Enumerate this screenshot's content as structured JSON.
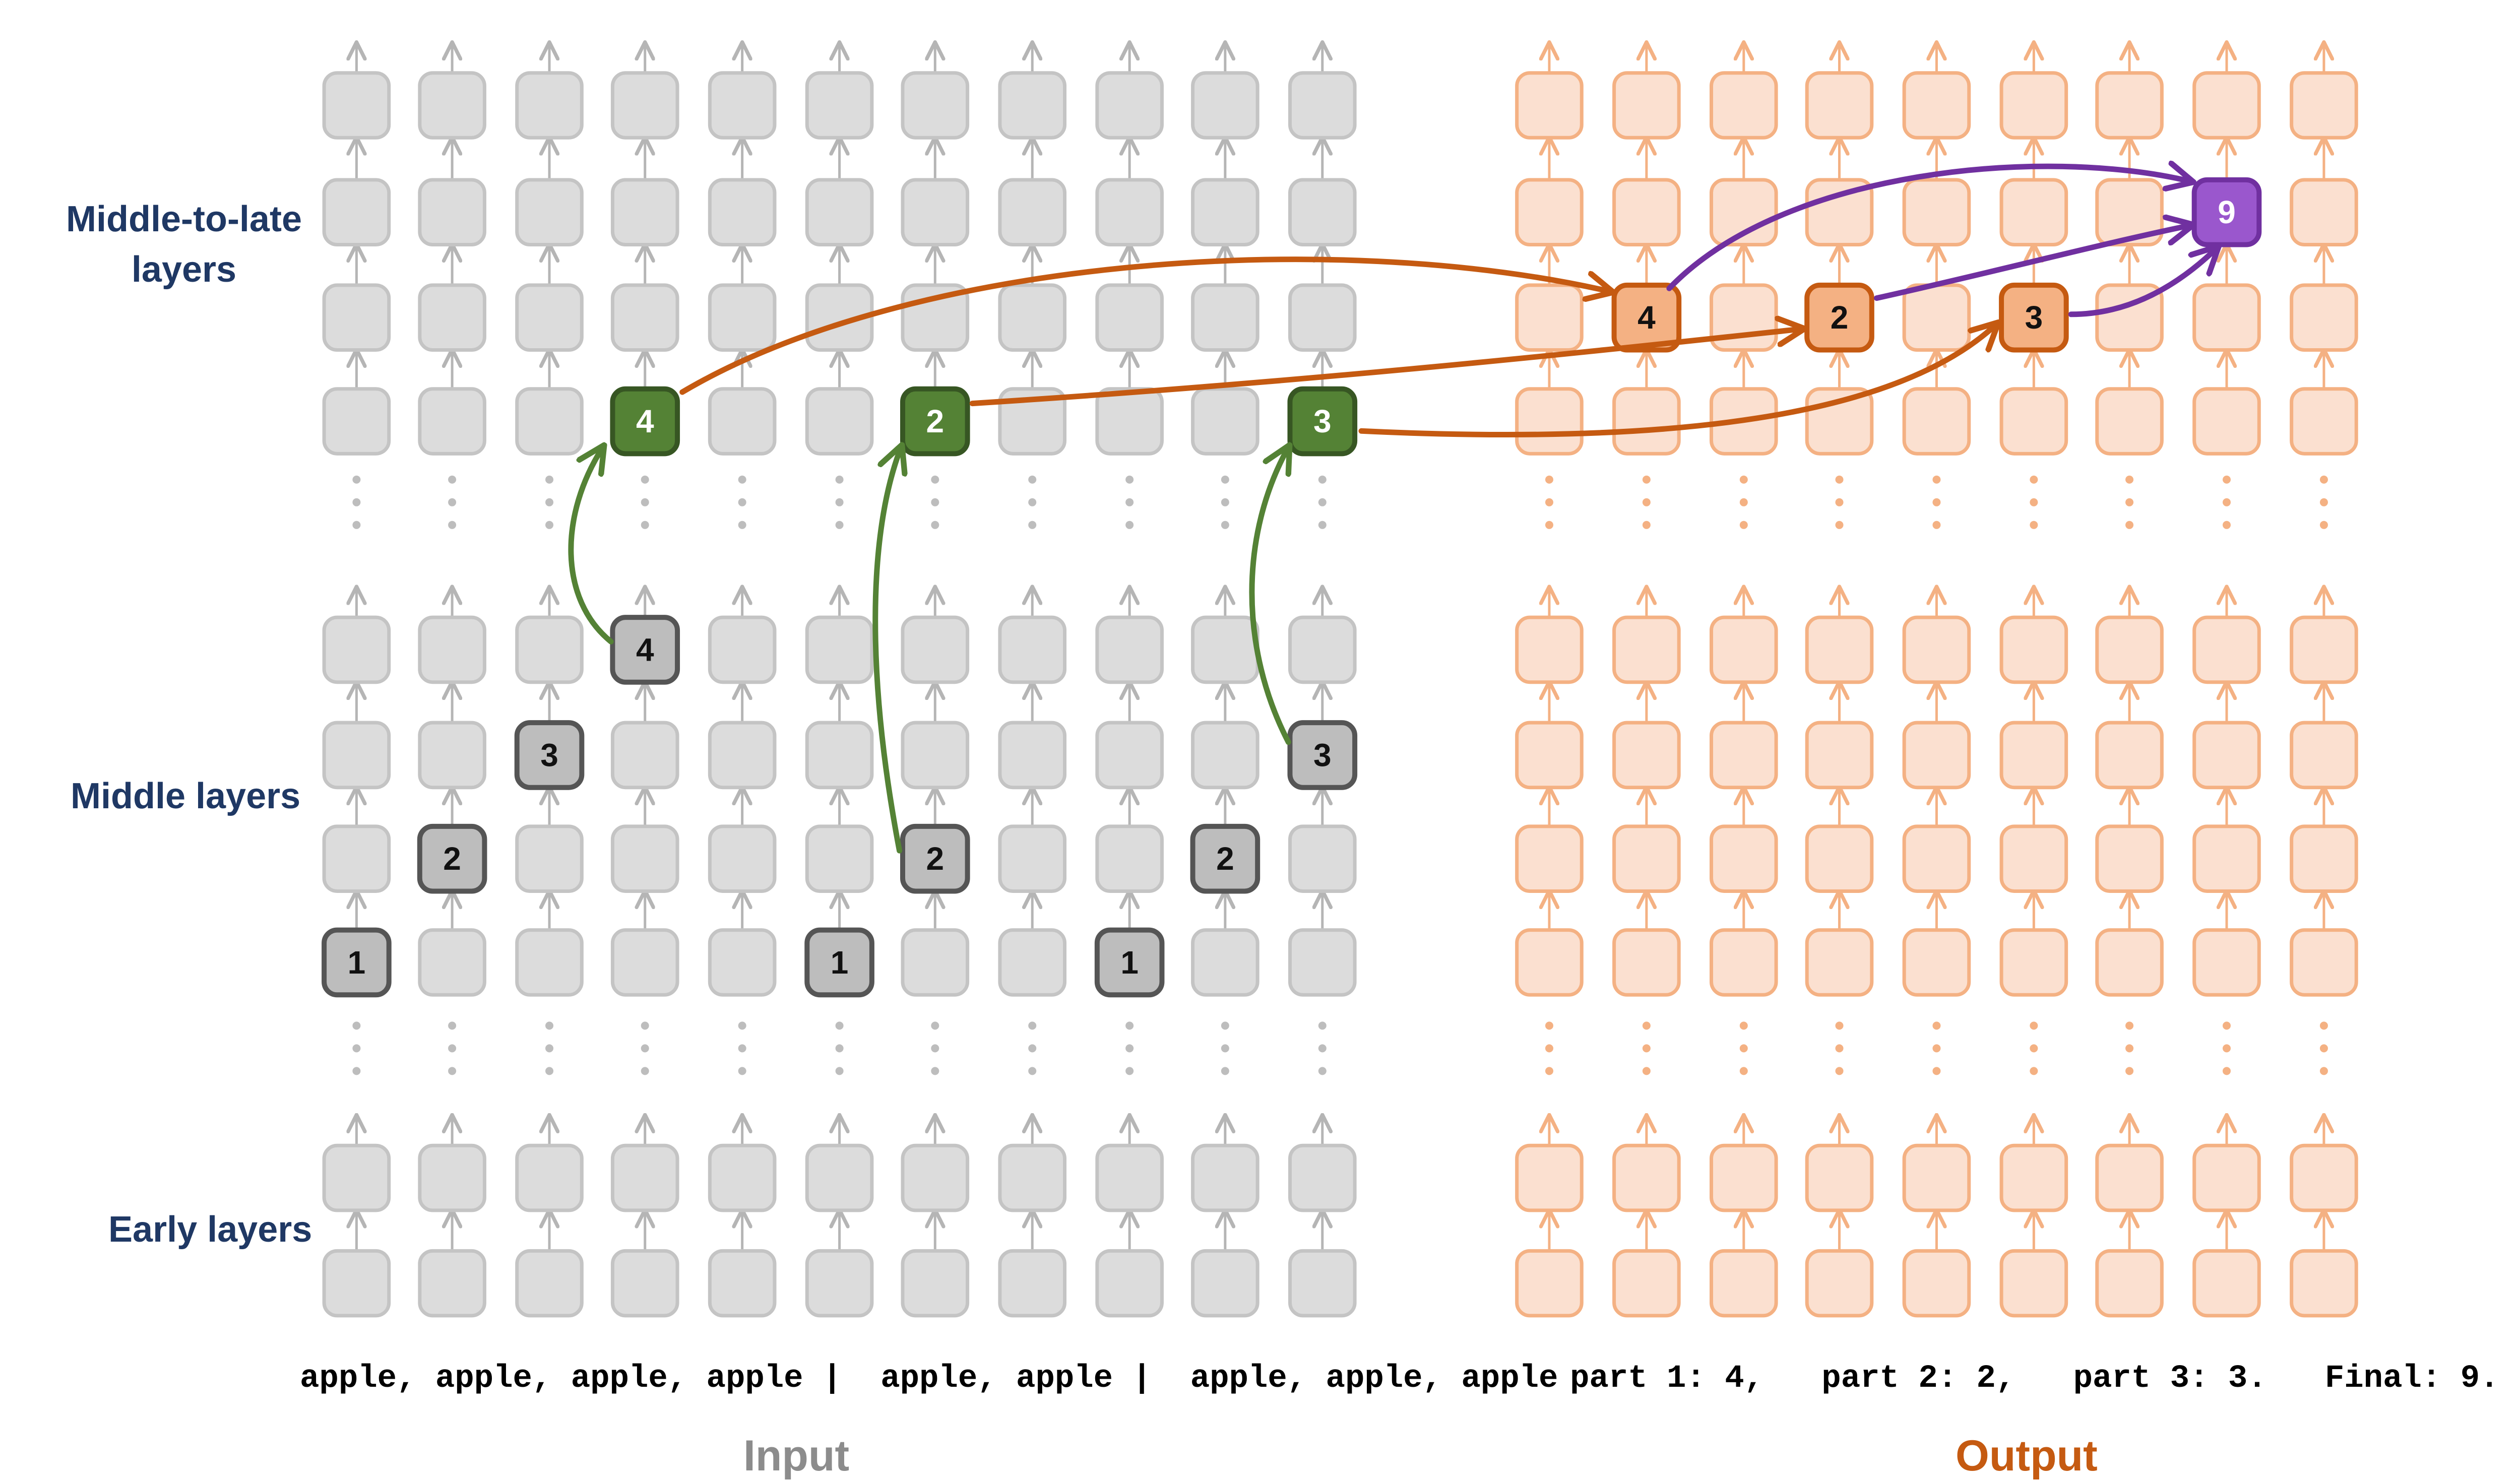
{
  "row_labels": {
    "middle_to_late": [
      "Middle-to-late",
      "layers"
    ],
    "middle": "Middle layers",
    "early": "Early layers"
  },
  "input": {
    "tokens": "apple, apple, apple, apple |  apple, apple |  apple, apple, apple",
    "title": "Input"
  },
  "output": {
    "tokens": "part 1: 4,   part 2: 2,   part 3: 3.   Final: 9.",
    "title": "Output"
  },
  "highlights": {
    "count_markers": [
      {
        "col": 0,
        "row": "mid1",
        "value": "1"
      },
      {
        "col": 1,
        "row": "mid2",
        "value": "2"
      },
      {
        "col": 2,
        "row": "mid3",
        "value": "3"
      },
      {
        "col": 3,
        "row": "mid4",
        "value": "4"
      },
      {
        "col": 5,
        "row": "mid1",
        "value": "1"
      },
      {
        "col": 6,
        "row": "mid2",
        "value": "2"
      },
      {
        "col": 8,
        "row": "mid1",
        "value": "1"
      },
      {
        "col": 9,
        "row": "mid2",
        "value": "2"
      },
      {
        "col": 10,
        "row": "mid3",
        "value": "3"
      }
    ],
    "green_markers": [
      {
        "col": 3,
        "value": "4"
      },
      {
        "col": 6,
        "value": "2"
      },
      {
        "col": 10,
        "value": "3"
      }
    ],
    "orange_markers": [
      {
        "col": 1,
        "value": "4"
      },
      {
        "col": 3,
        "value": "2"
      },
      {
        "col": 5,
        "value": "3"
      }
    ],
    "purple_marker": {
      "col": 7,
      "value": "9"
    }
  },
  "colors": {
    "gray_fill": "#DCDCDC",
    "gray_stroke": "#C4C4C4",
    "dark_gray_fill": "#BDBDBD",
    "dark_gray_stroke": "#555555",
    "orange_fill": "#FBE0D0",
    "orange_stroke": "#F4B183",
    "dark_orange_fill": "#F4B183",
    "dark_orange_stroke": "#C55A11",
    "green_fill": "#548235",
    "green_stroke": "#375623",
    "purple_fill": "#9A57CD",
    "purple_stroke": "#7030A0",
    "label_navy": "#1F3864",
    "input_title": "#8C8C8C",
    "output_title": "#C55A11",
    "arrow_green": "#548235",
    "arrow_orange": "#C55A11",
    "arrow_purple": "#7030A0"
  }
}
